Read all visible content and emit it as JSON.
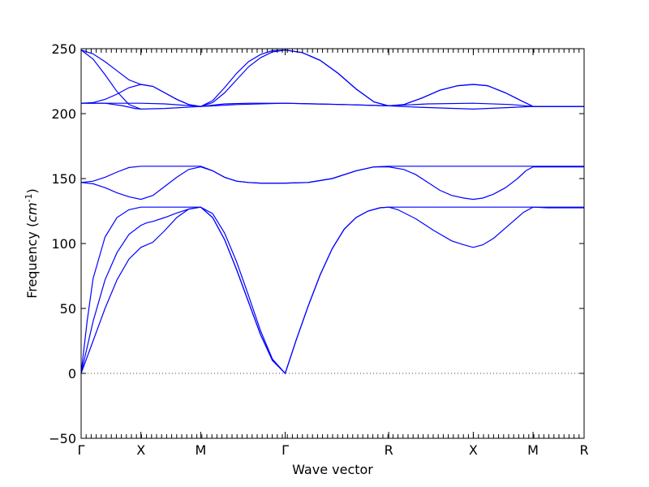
{
  "chart_data": {
    "type": "line",
    "xlabel": "Wave vector",
    "ylabel": "Frequency",
    "ylabel_unit": "cm",
    "ylabel_exponent": "-1",
    "ylim": [
      -50,
      250
    ],
    "yticks": [
      -50,
      0,
      50,
      100,
      150,
      200,
      250
    ],
    "x_points": [
      {
        "label": "Γ",
        "pos": 0.0
      },
      {
        "label": "X",
        "pos": 0.5
      },
      {
        "label": "M",
        "pos": 1.0
      },
      {
        "label": "Γ",
        "pos": 1.707
      },
      {
        "label": "R",
        "pos": 2.573
      },
      {
        "label": "X",
        "pos": 3.28
      },
      {
        "label": "M",
        "pos": 3.78
      },
      {
        "label": "R",
        "pos": 4.207
      }
    ],
    "zero_line": true,
    "series": [
      {
        "values": [
          [
            0,
            0
          ],
          [
            0.1,
            40
          ],
          [
            0.2,
            72
          ],
          [
            0.3,
            93
          ],
          [
            0.4,
            107
          ],
          [
            0.5,
            114
          ],
          [
            0.55,
            116
          ],
          [
            0.6,
            117
          ],
          [
            0.7,
            120
          ],
          [
            0.8,
            123.5
          ],
          [
            0.9,
            126.5
          ],
          [
            1.0,
            128
          ],
          [
            1.1,
            123
          ],
          [
            1.2,
            108
          ],
          [
            1.3,
            86
          ],
          [
            1.4,
            60
          ],
          [
            1.5,
            33
          ],
          [
            1.6,
            11
          ],
          [
            1.707,
            0
          ],
          [
            1.8,
            26
          ],
          [
            1.9,
            52
          ],
          [
            2.0,
            76
          ],
          [
            2.1,
            96
          ],
          [
            2.2,
            111
          ],
          [
            2.3,
            120
          ],
          [
            2.4,
            125
          ],
          [
            2.5,
            127.5
          ],
          [
            2.573,
            128
          ],
          [
            2.65,
            126
          ],
          [
            2.8,
            119
          ],
          [
            2.95,
            110
          ],
          [
            3.1,
            102
          ],
          [
            3.2,
            99
          ],
          [
            3.28,
            97
          ],
          [
            3.36,
            99
          ],
          [
            3.45,
            104
          ],
          [
            3.6,
            116
          ],
          [
            3.7,
            124
          ],
          [
            3.78,
            128
          ],
          [
            3.9,
            127.5
          ],
          [
            4.207,
            127.5
          ]
        ]
      },
      {
        "values": [
          [
            0,
            0
          ],
          [
            0.1,
            25
          ],
          [
            0.2,
            50
          ],
          [
            0.3,
            72
          ],
          [
            0.4,
            88
          ],
          [
            0.5,
            97
          ],
          [
            0.6,
            101
          ],
          [
            0.7,
            110
          ],
          [
            0.8,
            120
          ],
          [
            0.9,
            126.5
          ],
          [
            1.0,
            128
          ],
          [
            1.1,
            120
          ],
          [
            1.2,
            103
          ],
          [
            1.3,
            80
          ],
          [
            1.4,
            55
          ],
          [
            1.5,
            30
          ],
          [
            1.6,
            10
          ],
          [
            1.707,
            0
          ],
          [
            1.8,
            26
          ],
          [
            1.9,
            52
          ],
          [
            2.0,
            76
          ],
          [
            2.1,
            96
          ],
          [
            2.2,
            111
          ],
          [
            2.3,
            120
          ],
          [
            2.4,
            125
          ],
          [
            2.5,
            127.5
          ],
          [
            2.573,
            128
          ],
          [
            3.28,
            128
          ],
          [
            3.78,
            128
          ],
          [
            4.207,
            128
          ]
        ]
      },
      {
        "values": [
          [
            0,
            0
          ],
          [
            0.05,
            40
          ],
          [
            0.1,
            73
          ],
          [
            0.2,
            105
          ],
          [
            0.3,
            120
          ],
          [
            0.4,
            126
          ],
          [
            0.5,
            128
          ],
          [
            1.0,
            128
          ],
          [
            1.1,
            120
          ],
          [
            1.2,
            103
          ],
          [
            1.3,
            80
          ],
          [
            1.4,
            55
          ],
          [
            1.5,
            30
          ],
          [
            1.6,
            10
          ],
          [
            1.707,
            0
          ]
        ]
      },
      {
        "values": [
          [
            0,
            147
          ],
          [
            0.1,
            146
          ],
          [
            0.2,
            143
          ],
          [
            0.3,
            139
          ],
          [
            0.4,
            136
          ],
          [
            0.5,
            134
          ],
          [
            0.6,
            137
          ],
          [
            0.7,
            144
          ],
          [
            0.8,
            151
          ],
          [
            0.9,
            157
          ],
          [
            1.0,
            159
          ],
          [
            1.1,
            156
          ],
          [
            1.2,
            151
          ],
          [
            1.3,
            148
          ],
          [
            1.4,
            147
          ],
          [
            1.5,
            146.5
          ],
          [
            1.707,
            146.5
          ],
          [
            1.9,
            147
          ],
          [
            2.1,
            150
          ],
          [
            2.3,
            156
          ],
          [
            2.45,
            159
          ],
          [
            2.573,
            159
          ],
          [
            2.7,
            157
          ],
          [
            2.8,
            153
          ],
          [
            2.9,
            147
          ],
          [
            3.0,
            141
          ],
          [
            3.1,
            137
          ],
          [
            3.2,
            135
          ],
          [
            3.28,
            134
          ],
          [
            3.36,
            135
          ],
          [
            3.45,
            138
          ],
          [
            3.55,
            143
          ],
          [
            3.65,
            150
          ],
          [
            3.72,
            156
          ],
          [
            3.78,
            159
          ],
          [
            4.207,
            159
          ]
        ]
      },
      {
        "values": [
          [
            0,
            147
          ],
          [
            0.1,
            148
          ],
          [
            0.2,
            151
          ],
          [
            0.3,
            155
          ],
          [
            0.4,
            158.5
          ],
          [
            0.5,
            159.5
          ],
          [
            1.0,
            159.5
          ],
          [
            1.1,
            156
          ],
          [
            1.2,
            151
          ],
          [
            1.3,
            148
          ],
          [
            1.4,
            147
          ],
          [
            1.5,
            146.5
          ],
          [
            1.707,
            146.5
          ],
          [
            1.9,
            147
          ],
          [
            2.1,
            150
          ],
          [
            2.3,
            156
          ],
          [
            2.45,
            159
          ],
          [
            2.573,
            159.5
          ],
          [
            3.28,
            159.5
          ],
          [
            3.78,
            159.5
          ],
          [
            4.207,
            159.5
          ]
        ]
      },
      {
        "values": [
          [
            0,
            208
          ],
          [
            0.2,
            208
          ],
          [
            0.35,
            206
          ],
          [
            0.45,
            204
          ],
          [
            0.5,
            203.5
          ],
          [
            0.7,
            204
          ],
          [
            1.0,
            205.5
          ],
          [
            1.3,
            207
          ],
          [
            1.707,
            208
          ],
          [
            2.2,
            207
          ],
          [
            2.573,
            206
          ],
          [
            2.8,
            205
          ],
          [
            3.28,
            203.5
          ],
          [
            3.78,
            205.5
          ],
          [
            4.207,
            205.5
          ]
        ]
      },
      {
        "values": [
          [
            0,
            208
          ],
          [
            0.5,
            208
          ],
          [
            0.7,
            207.5
          ],
          [
            1.0,
            205.5
          ],
          [
            1.2,
            207.5
          ],
          [
            1.4,
            208
          ],
          [
            1.707,
            208
          ],
          [
            2.2,
            207
          ],
          [
            2.573,
            206
          ],
          [
            2.9,
            207.5
          ],
          [
            3.28,
            208
          ],
          [
            3.6,
            207
          ],
          [
            3.78,
            205.5
          ],
          [
            4.207,
            205.5
          ]
        ]
      },
      {
        "values": [
          [
            0,
            208
          ],
          [
            0.1,
            208.5
          ],
          [
            0.2,
            211
          ],
          [
            0.3,
            215
          ],
          [
            0.4,
            220
          ],
          [
            0.5,
            222.5
          ],
          [
            0.6,
            221
          ],
          [
            0.7,
            216
          ],
          [
            0.8,
            211
          ],
          [
            0.9,
            207
          ],
          [
            1.0,
            205.5
          ],
          [
            1.1,
            208.5
          ],
          [
            1.2,
            216
          ],
          [
            1.3,
            226
          ],
          [
            1.4,
            236
          ],
          [
            1.5,
            243
          ],
          [
            1.6,
            247.5
          ],
          [
            1.707,
            249
          ],
          [
            1.85,
            247
          ],
          [
            2.0,
            241
          ],
          [
            2.15,
            231
          ],
          [
            2.3,
            219
          ],
          [
            2.45,
            209
          ],
          [
            2.573,
            206
          ],
          [
            2.7,
            207
          ],
          [
            2.85,
            212
          ],
          [
            3.0,
            218
          ],
          [
            3.15,
            221.5
          ],
          [
            3.28,
            222.5
          ],
          [
            3.4,
            221.5
          ],
          [
            3.55,
            216
          ],
          [
            3.68,
            210
          ],
          [
            3.78,
            205.5
          ],
          [
            4.207,
            205.5
          ]
        ]
      },
      {
        "values": [
          [
            0,
            249
          ],
          [
            0.1,
            246
          ],
          [
            0.2,
            240
          ],
          [
            0.3,
            233
          ],
          [
            0.4,
            226
          ],
          [
            0.5,
            222.5
          ],
          [
            0.6,
            221
          ],
          [
            0.7,
            216
          ],
          [
            0.8,
            211
          ],
          [
            0.9,
            207
          ],
          [
            1.0,
            205.5
          ],
          [
            1.1,
            210
          ],
          [
            1.2,
            220
          ],
          [
            1.3,
            231
          ],
          [
            1.4,
            240
          ],
          [
            1.5,
            245.5
          ],
          [
            1.6,
            248.5
          ],
          [
            1.707,
            249
          ],
          [
            1.85,
            247
          ],
          [
            2.0,
            241
          ],
          [
            2.15,
            231
          ],
          [
            2.3,
            219
          ],
          [
            2.45,
            209
          ],
          [
            2.573,
            206
          ],
          [
            2.7,
            207
          ],
          [
            2.85,
            212
          ],
          [
            3.0,
            218
          ],
          [
            3.15,
            221.5
          ],
          [
            3.28,
            222.5
          ],
          [
            3.4,
            221.5
          ],
          [
            3.55,
            216
          ],
          [
            3.68,
            210
          ],
          [
            3.78,
            205.5
          ],
          [
            4.207,
            205.5
          ]
        ]
      },
      {
        "values": [
          [
            0,
            249
          ],
          [
            0.1,
            242
          ],
          [
            0.2,
            230
          ],
          [
            0.3,
            217
          ],
          [
            0.4,
            207
          ],
          [
            0.5,
            203.5
          ]
        ]
      }
    ]
  }
}
